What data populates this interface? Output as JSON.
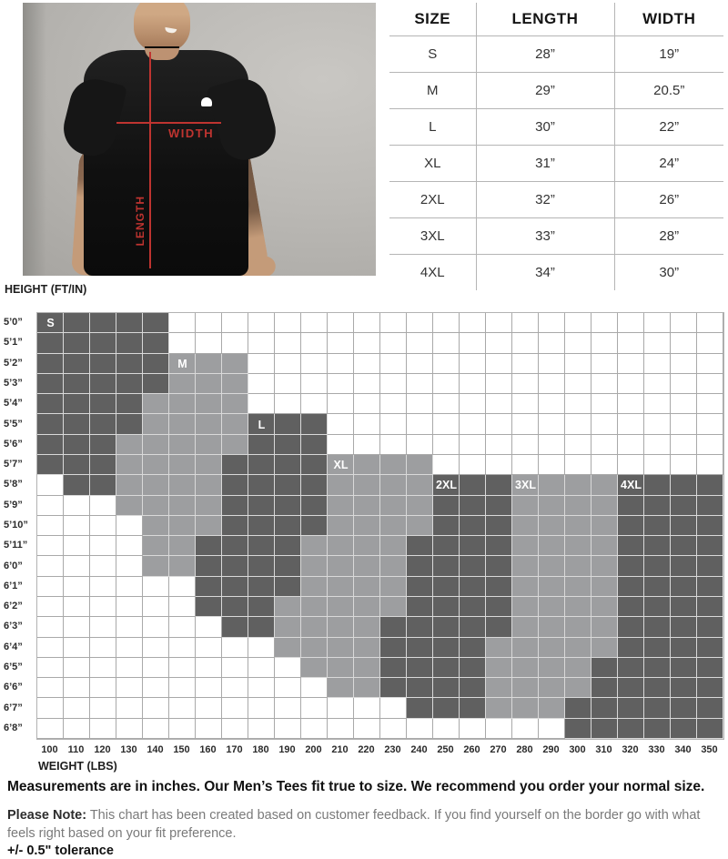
{
  "photo": {
    "width_label": "WIDTH",
    "length_label": "LENGTH",
    "accent_red": "#bf3430"
  },
  "chart_data": [
    {
      "type": "table",
      "columns": [
        "SIZE",
        "LENGTH",
        "WIDTH"
      ],
      "rows": [
        [
          "S",
          "28”",
          "19”"
        ],
        [
          "M",
          "29”",
          "20.5”"
        ],
        [
          "L",
          "30”",
          "22”"
        ],
        [
          "XL",
          "31”",
          "24”"
        ],
        [
          "2XL",
          "32”",
          "26”"
        ],
        [
          "3XL",
          "33”",
          "28”"
        ],
        [
          "4XL",
          "34”",
          "30”"
        ]
      ]
    },
    {
      "type": "heatmap",
      "ylabel": "HEIGHT (FT/IN)",
      "xlabel": "WEIGHT (LBS)",
      "x": [
        100,
        110,
        120,
        130,
        140,
        150,
        160,
        170,
        180,
        190,
        200,
        210,
        220,
        230,
        240,
        250,
        260,
        270,
        280,
        290,
        300,
        310,
        320,
        330,
        340,
        350
      ],
      "y": [
        "5’0”",
        "5’1”",
        "5’2”",
        "5’3”",
        "5’4”",
        "5’5”",
        "5’6”",
        "5’7”",
        "5’8”",
        "5’9”",
        "5’10”",
        "5’11”",
        "6’0”",
        "6’1”",
        "6’2”",
        "6’3”",
        "6’4”",
        "6’5”",
        "6’6”",
        "6’7”",
        "6’8”"
      ],
      "colors": {
        "D": "#606060",
        "M": "#9d9ea0",
        "W": "#ffffff"
      },
      "rows": [
        "DDDDDWWWWWWWWWWWWWWWWWWWWW",
        "DDDDDWWWWWWWWWWWWWWWWWWWWW",
        "DDDDDMMMWWWWWWWWWWWWWWWWWW",
        "DDDDDMMMWWWWWWWWWWWWWWWWWW",
        "DDDDMMMMWWWWWWWWWWWWWWWWWW",
        "DDDDMMMMDDDWWWWWWWWWWWWWWW",
        "DDDMMMMMDDDWWWWWWWWWWWWWWW",
        "DDDMMMMDDDDMMMMWWWWWWWWWWW",
        "WDDMMMMDDDDMMMMDDDMMMMDDDD",
        "WWWMMMMDDDDMMMMDDDMMMMDDDD",
        "WWWWMMMDDDDMMMMDDDMMMMDDDD",
        "WWWWMMDDDDMMMMDDDDMMMMDDDD",
        "WWWWMMDDDDMMMMDDDDMMMMDDDD",
        "WWWWWWDDDDMMMMDDDDMMMMDDDD",
        "WWWWWWDDDMMMMMDDDDMMMMDDDD",
        "WWWWWWWDDMMMMDDDDDMMMMDDDD",
        "WWWWWWWWWMMMMDDDDMMMMMDDDD",
        "WWWWWWWWWWMMMDDDDMMMMDDDDD",
        "WWWWWWWWWWWMMDDDDMMMMDDDDD",
        "WWWWWWWWWWWWWWDDDMMMDDDDDD",
        "WWWWWWWWWWWWWWWWWWWWDDDDDD"
      ],
      "region_labels": [
        {
          "text": "S",
          "row": 0,
          "col": 0
        },
        {
          "text": "M",
          "row": 2,
          "col": 5
        },
        {
          "text": "L",
          "row": 5,
          "col": 8
        },
        {
          "text": "XL",
          "row": 7,
          "col": 11
        },
        {
          "text": "2XL",
          "row": 8,
          "col": 15
        },
        {
          "text": "3XL",
          "row": 8,
          "col": 18
        },
        {
          "text": "4XL",
          "row": 8,
          "col": 22
        }
      ]
    }
  ],
  "notes": {
    "line1": "Measurements are in inches. Our Men’s Tees fit true to size. We recommend you order your normal size.",
    "note_label": "Please Note:",
    "note_body": " This chart has been created based on customer feedback. If you find yourself on the border go with what feels right based on your fit preference.",
    "tolerance": "+/- 0.5\" tolerance"
  }
}
